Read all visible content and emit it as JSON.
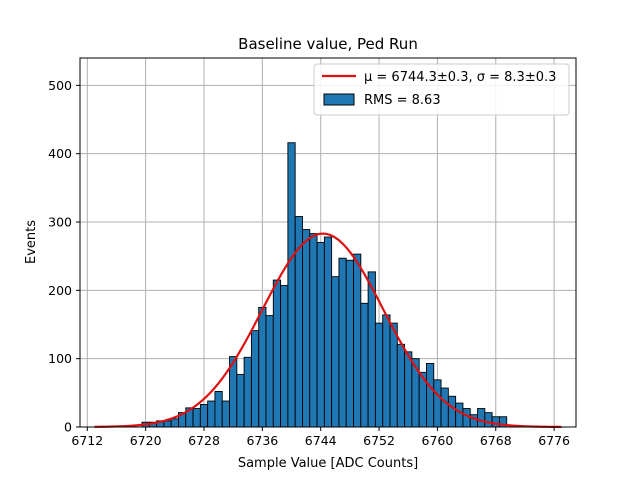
{
  "chart_data": {
    "type": "bar",
    "title": "Baseline value, Ped Run",
    "xlabel": "Sample Value [ADC Counts]",
    "ylabel": "Events",
    "xlim": [
      6711,
      6779
    ],
    "ylim": [
      0,
      540
    ],
    "xticks": [
      6712,
      6720,
      6728,
      6736,
      6744,
      6752,
      6760,
      6768,
      6776
    ],
    "yticks": [
      0,
      100,
      200,
      300,
      400,
      500
    ],
    "grid": true,
    "bar_color": "#1f77b4",
    "fit_color": "#dd1111",
    "bin_width": 1,
    "bins_start": 6719.5,
    "bins": [
      [
        6719.5,
        7
      ],
      [
        6720.5,
        7
      ],
      [
        6721.5,
        9
      ],
      [
        6722.5,
        9
      ],
      [
        6723.5,
        12
      ],
      [
        6724.5,
        21
      ],
      [
        6725.5,
        28
      ],
      [
        6726.5,
        27
      ],
      [
        6727.5,
        33
      ],
      [
        6728.5,
        38
      ],
      [
        6729.5,
        52
      ],
      [
        6730.5,
        38
      ],
      [
        6731.5,
        103
      ],
      [
        6732.5,
        77
      ],
      [
        6733.5,
        102
      ],
      [
        6734.5,
        141
      ],
      [
        6735.5,
        175
      ],
      [
        6736.5,
        163
      ],
      [
        6737.5,
        215
      ],
      [
        6738.5,
        207
      ],
      [
        6739.5,
        416
      ],
      [
        6740.5,
        308
      ],
      [
        6741.5,
        289
      ],
      [
        6742.5,
        283
      ],
      [
        6743.5,
        270
      ],
      [
        6744.5,
        278
      ],
      [
        6745.5,
        220
      ],
      [
        6746.5,
        247
      ],
      [
        6747.5,
        244
      ],
      [
        6748.5,
        253
      ],
      [
        6749.5,
        181
      ],
      [
        6750.5,
        227
      ],
      [
        6751.5,
        152
      ],
      [
        6752.5,
        164
      ],
      [
        6753.5,
        152
      ],
      [
        6754.5,
        121
      ],
      [
        6755.5,
        110
      ],
      [
        6756.5,
        100
      ],
      [
        6757.5,
        80
      ],
      [
        6758.5,
        93
      ],
      [
        6759.5,
        69
      ],
      [
        6760.5,
        57
      ],
      [
        6761.5,
        45
      ],
      [
        6762.5,
        35
      ],
      [
        6763.5,
        27
      ],
      [
        6764.5,
        18
      ],
      [
        6765.5,
        27
      ],
      [
        6766.5,
        21
      ],
      [
        6767.5,
        15
      ],
      [
        6768.5,
        15
      ]
    ],
    "fit": {
      "name": "gaussian",
      "mu": 6744.3,
      "sigma": 8.3,
      "amplitude": 283,
      "x_range": [
        6713,
        6777
      ]
    },
    "legend": {
      "placement": "top-right",
      "entries": [
        {
          "kind": "line",
          "label": "μ = 6744.3±0.3, σ = 8.3±0.3"
        },
        {
          "kind": "patch",
          "label": "RMS = 8.63"
        }
      ]
    }
  }
}
